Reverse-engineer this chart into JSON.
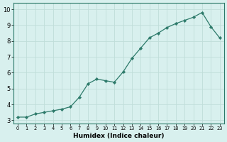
{
  "x": [
    0,
    1,
    2,
    3,
    4,
    5,
    6,
    7,
    8,
    9,
    10,
    11,
    12,
    13,
    14,
    15,
    16,
    17,
    18,
    19,
    20,
    21,
    22,
    23
  ],
  "y": [
    3.2,
    3.2,
    3.4,
    3.5,
    3.6,
    3.7,
    3.85,
    4.45,
    5.3,
    5.6,
    5.5,
    5.4,
    6.05,
    6.9,
    7.55,
    8.2,
    8.5,
    8.85,
    9.1,
    9.3,
    9.5,
    9.8,
    8.9,
    8.2
  ],
  "xlabel": "Humidex (Indice chaleur)",
  "ylabel": "",
  "ylim": [
    2.8,
    10.4
  ],
  "xlim": [
    -0.5,
    23.5
  ],
  "yticks": [
    3,
    4,
    5,
    6,
    7,
    8,
    9,
    10
  ],
  "xticks": [
    0,
    1,
    2,
    3,
    4,
    5,
    6,
    7,
    8,
    9,
    10,
    11,
    12,
    13,
    14,
    15,
    16,
    17,
    18,
    19,
    20,
    21,
    22,
    23
  ],
  "line_color": "#2d7a6a",
  "marker_color": "#2d7a6a",
  "bg_color": "#d8f0ee",
  "grid_color": "#c0ddd9",
  "border_color": "#2d7a6a"
}
